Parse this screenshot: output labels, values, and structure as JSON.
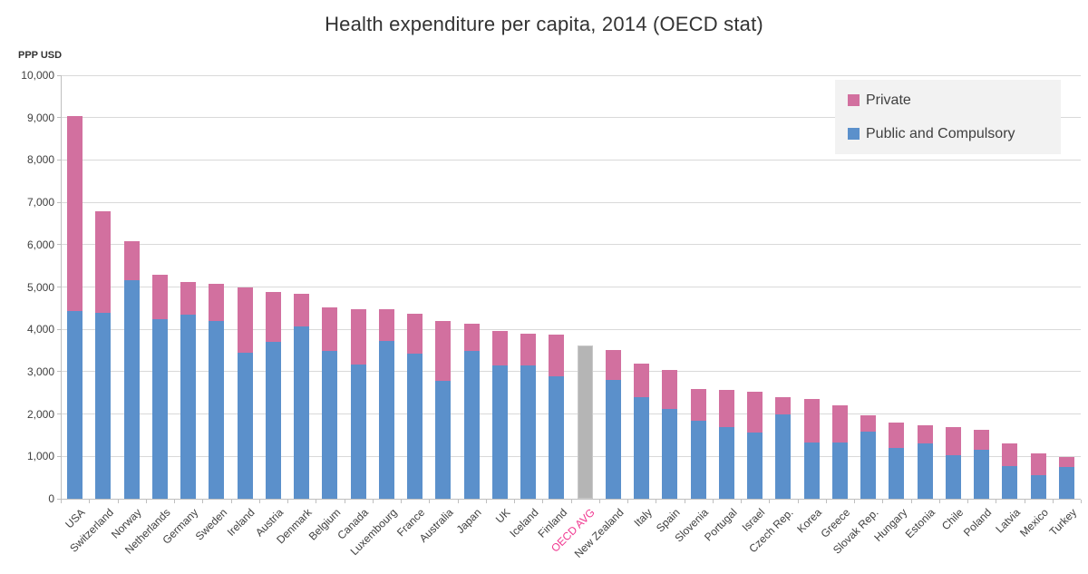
{
  "chart_data": {
    "type": "bar",
    "stacked": true,
    "title": "Health expenditure per capita, 2014 (OECD stat)",
    "ylabel": "PPP USD",
    "xlabel": "",
    "ylim": [
      0,
      10000
    ],
    "ytick_interval": 1000,
    "grid": "horizontal",
    "legend_position": "top-right",
    "legend": [
      {
        "label": "Private",
        "color": "#d2709f"
      },
      {
        "label": "Public and Compulsory",
        "color": "#5b90cb"
      }
    ],
    "highlight": {
      "label": "OECD AVG",
      "value": 3620,
      "bar_color": "#b5b5b5",
      "bar_border": "#c9c9c9",
      "label_color": "#f0368f"
    },
    "categories": [
      "USA",
      "Switzerland",
      "Norway",
      "Netherlands",
      "Germany",
      "Sweden",
      "Ireland",
      "Austria",
      "Denmark",
      "Belgium",
      "Canada",
      "Luxembourg",
      "France",
      "Australia",
      "Japan",
      "UK",
      "Iceland",
      "Finland",
      "OECD AVG",
      "New Zealand",
      "Italy",
      "Spain",
      "Slovenia",
      "Portugal",
      "Israel",
      "Czech Rep.",
      "Korea",
      "Greece",
      "Slovak Rep.",
      "Hungary",
      "Estonia",
      "Chile",
      "Poland",
      "Latvia",
      "Mexico",
      "Turkey"
    ],
    "series": [
      {
        "name": "Public and Compulsory",
        "color": "#5b90cb",
        "values": [
          4430,
          4400,
          5170,
          4250,
          4350,
          4200,
          3450,
          3700,
          4070,
          3490,
          3160,
          3730,
          3420,
          2790,
          3490,
          3150,
          3150,
          2900,
          null,
          2810,
          2400,
          2120,
          1850,
          1700,
          1560,
          1990,
          1330,
          1330,
          1580,
          1200,
          1310,
          1030,
          1160,
          770,
          550,
          760
        ]
      },
      {
        "name": "Private",
        "color": "#d2709f",
        "values": [
          4600,
          2390,
          910,
          1030,
          770,
          870,
          1550,
          1190,
          780,
          1030,
          1310,
          740,
          950,
          1410,
          650,
          820,
          740,
          970,
          null,
          700,
          790,
          930,
          750,
          880,
          970,
          400,
          1030,
          870,
          390,
          600,
          420,
          670,
          460,
          530,
          530,
          230
        ]
      }
    ],
    "totals": [
      9030,
      6790,
      6080,
      5280,
      5120,
      5070,
      5000,
      4890,
      4850,
      4520,
      4470,
      4470,
      4370,
      4200,
      4140,
      3970,
      3890,
      3870,
      3620,
      3510,
      3190,
      3050,
      2600,
      2580,
      2530,
      2390,
      2360,
      2200,
      1970,
      1800,
      1730,
      1700,
      1620,
      1300,
      1080,
      990
    ]
  }
}
